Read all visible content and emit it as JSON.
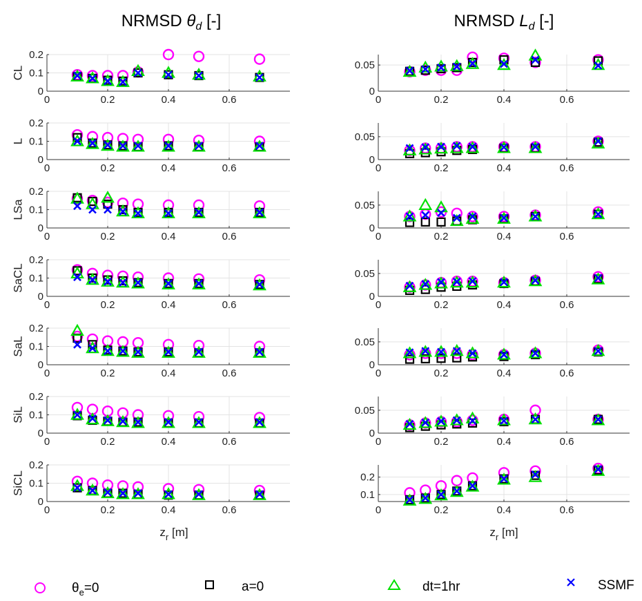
{
  "titles": {
    "left_prefix": "NRMSD ",
    "left_symbol": "θ",
    "left_sub": "d",
    "left_suffix": " [-]",
    "right_prefix": "NRMSD ",
    "right_symbol": "L",
    "right_sub": "d",
    "right_suffix": " [-]"
  },
  "xlabel": {
    "main": "z",
    "sub": "r",
    "unit": " [m]"
  },
  "legend": [
    {
      "name": "θ",
      "sub": "e",
      "suffix": "=0",
      "marker": "circle",
      "color": "#ff00ff"
    },
    {
      "name": "a=0",
      "sub": "",
      "suffix": "",
      "marker": "square",
      "color": "#000000"
    },
    {
      "name": "dt=1hr",
      "sub": "",
      "suffix": "",
      "marker": "triangle",
      "color": "#00e000"
    },
    {
      "name": "SSMF",
      "sub": "",
      "suffix": "",
      "marker": "x",
      "color": "#0000ff"
    }
  ],
  "chart_data": {
    "type": "scatter",
    "x": [
      0.1,
      0.15,
      0.2,
      0.25,
      0.3,
      0.4,
      0.5,
      0.7
    ],
    "xlim": [
      0,
      0.8
    ],
    "xticks": [
      0,
      0.2,
      0.4,
      0.6
    ],
    "xtick_labels": [
      "0",
      "0.2",
      "0.4",
      "0.6"
    ],
    "grid": true,
    "rows": [
      "CL",
      "L",
      "LSa",
      "SaCL",
      "SaL",
      "SiL",
      "SiCL"
    ],
    "left": {
      "ylim": [
        0,
        0.2
      ],
      "yticks": [
        0,
        0.1,
        0.2
      ],
      "ytick_labels": [
        "0",
        "0.1",
        "0.2"
      ],
      "panels": [
        {
          "soil": "CL",
          "series": [
            {
              "name": "θe=0",
              "values": [
                0.09,
                0.085,
                0.085,
                0.085,
                0.105,
                0.2,
                0.19,
                0.175
              ]
            },
            {
              "name": "a=0",
              "values": [
                0.08,
                0.07,
                0.06,
                0.055,
                0.1,
                0.09,
                0.085,
                0.075
              ]
            },
            {
              "name": "dt=1hr",
              "values": [
                0.08,
                0.07,
                0.055,
                0.05,
                0.11,
                0.1,
                0.09,
                0.08
              ]
            },
            {
              "name": "SSMF",
              "values": [
                0.085,
                0.07,
                0.055,
                0.05,
                0.1,
                0.09,
                0.085,
                0.075
              ]
            }
          ]
        },
        {
          "soil": "L",
          "series": [
            {
              "name": "θe=0",
              "values": [
                0.135,
                0.125,
                0.12,
                0.115,
                0.11,
                0.11,
                0.105,
                0.1
              ]
            },
            {
              "name": "a=0",
              "values": [
                0.12,
                0.09,
                0.08,
                0.075,
                0.07,
                0.075,
                0.07,
                0.07
              ]
            },
            {
              "name": "dt=1hr",
              "values": [
                0.1,
                0.085,
                0.075,
                0.07,
                0.07,
                0.07,
                0.07,
                0.07
              ]
            },
            {
              "name": "SSMF",
              "values": [
                0.1,
                0.09,
                0.08,
                0.075,
                0.075,
                0.075,
                0.075,
                0.075
              ]
            }
          ]
        },
        {
          "soil": "LSa",
          "series": [
            {
              "name": "θe=0",
              "values": [
                0.16,
                0.15,
                0.14,
                0.135,
                0.13,
                0.125,
                0.125,
                0.12
              ]
            },
            {
              "name": "a=0",
              "values": [
                0.165,
                0.145,
                0.13,
                0.1,
                0.085,
                0.085,
                0.085,
                0.085
              ]
            },
            {
              "name": "dt=1hr",
              "values": [
                0.16,
                0.13,
                0.165,
                0.09,
                0.08,
                0.08,
                0.08,
                0.08
              ]
            },
            {
              "name": "SSMF",
              "values": [
                0.12,
                0.1,
                0.1,
                0.09,
                0.08,
                0.08,
                0.085,
                0.085
              ]
            }
          ]
        },
        {
          "soil": "SaCL",
          "series": [
            {
              "name": "θe=0",
              "values": [
                0.145,
                0.125,
                0.115,
                0.11,
                0.105,
                0.1,
                0.095,
                0.09
              ]
            },
            {
              "name": "a=0",
              "values": [
                0.14,
                0.1,
                0.09,
                0.085,
                0.075,
                0.07,
                0.07,
                0.065
              ]
            },
            {
              "name": "dt=1hr",
              "values": [
                0.125,
                0.09,
                0.08,
                0.075,
                0.07,
                0.065,
                0.065,
                0.06
              ]
            },
            {
              "name": "SSMF",
              "values": [
                0.105,
                0.09,
                0.08,
                0.075,
                0.075,
                0.07,
                0.07,
                0.065
              ]
            }
          ]
        },
        {
          "soil": "SaL",
          "series": [
            {
              "name": "θe=0",
              "values": [
                0.155,
                0.14,
                0.13,
                0.125,
                0.12,
                0.11,
                0.105,
                0.1
              ]
            },
            {
              "name": "a=0",
              "values": [
                0.145,
                0.11,
                0.08,
                0.075,
                0.07,
                0.07,
                0.065,
                0.065
              ]
            },
            {
              "name": "dt=1hr",
              "values": [
                0.185,
                0.09,
                0.075,
                0.07,
                0.065,
                0.065,
                0.065,
                0.065
              ]
            },
            {
              "name": "SSMF",
              "values": [
                0.11,
                0.09,
                0.075,
                0.075,
                0.07,
                0.07,
                0.07,
                0.07
              ]
            }
          ]
        },
        {
          "soil": "SiL",
          "series": [
            {
              "name": "θe=0",
              "values": [
                0.14,
                0.13,
                0.12,
                0.11,
                0.1,
                0.095,
                0.09,
                0.085
              ]
            },
            {
              "name": "a=0",
              "values": [
                0.095,
                0.07,
                0.065,
                0.06,
                0.06,
                0.055,
                0.055,
                0.055
              ]
            },
            {
              "name": "dt=1hr",
              "values": [
                0.1,
                0.075,
                0.065,
                0.06,
                0.055,
                0.055,
                0.055,
                0.055
              ]
            },
            {
              "name": "SSMF",
              "values": [
                0.1,
                0.08,
                0.07,
                0.065,
                0.06,
                0.06,
                0.06,
                0.06
              ]
            }
          ]
        },
        {
          "soil": "SiCL",
          "series": [
            {
              "name": "θe=0",
              "values": [
                0.11,
                0.1,
                0.09,
                0.085,
                0.08,
                0.07,
                0.065,
                0.06
              ]
            },
            {
              "name": "a=0",
              "values": [
                0.075,
                0.06,
                0.045,
                0.045,
                0.04,
                0.035,
                0.035,
                0.035
              ]
            },
            {
              "name": "dt=1hr",
              "values": [
                0.085,
                0.06,
                0.045,
                0.04,
                0.04,
                0.04,
                0.035,
                0.035
              ]
            },
            {
              "name": "SSMF",
              "values": [
                0.075,
                0.06,
                0.05,
                0.045,
                0.045,
                0.04,
                0.04,
                0.04
              ]
            }
          ]
        }
      ]
    },
    "right": {
      "panels": [
        {
          "soil": "CL",
          "ylim": [
            0,
            0.07
          ],
          "yticks": [
            0,
            0.05
          ],
          "ytick_labels": [
            "0",
            "0.05"
          ],
          "series": [
            {
              "name": "θe=0",
              "values": [
                0.037,
                0.04,
                0.04,
                0.04,
                0.065,
                0.063,
                0.055,
                0.06
              ]
            },
            {
              "name": "a=0",
              "values": [
                0.038,
                0.04,
                0.043,
                0.045,
                0.055,
                0.06,
                0.055,
                0.058
              ]
            },
            {
              "name": "dt=1hr",
              "values": [
                0.037,
                0.045,
                0.047,
                0.048,
                0.052,
                0.05,
                0.068,
                0.05
              ]
            },
            {
              "name": "SSMF",
              "values": [
                0.039,
                0.042,
                0.045,
                0.047,
                0.053,
                0.052,
                0.06,
                0.049
              ]
            }
          ]
        },
        {
          "soil": "L",
          "ylim": [
            0,
            0.08
          ],
          "yticks": [
            0,
            0.05
          ],
          "ytick_labels": [
            "0",
            "0.05"
          ],
          "series": [
            {
              "name": "θe=0",
              "values": [
                0.02,
                0.025,
                0.025,
                0.028,
                0.028,
                0.028,
                0.028,
                0.04
              ]
            },
            {
              "name": "a=0",
              "values": [
                0.013,
                0.015,
                0.017,
                0.02,
                0.022,
                0.025,
                0.025,
                0.038
              ]
            },
            {
              "name": "dt=1hr",
              "values": [
                0.02,
                0.022,
                0.024,
                0.025,
                0.025,
                0.025,
                0.025,
                0.035
              ]
            },
            {
              "name": "SSMF",
              "values": [
                0.025,
                0.027,
                0.028,
                0.03,
                0.028,
                0.027,
                0.028,
                0.04
              ]
            }
          ]
        },
        {
          "soil": "LSa",
          "ylim": [
            0,
            0.08
          ],
          "yticks": [
            0,
            0.05
          ],
          "ytick_labels": [
            "0",
            "0.05"
          ],
          "series": [
            {
              "name": "θe=0",
              "values": [
                0.025,
                0.03,
                0.035,
                0.032,
                0.025,
                0.025,
                0.028,
                0.035
              ]
            },
            {
              "name": "a=0",
              "values": [
                0.012,
                0.013,
                0.013,
                0.015,
                0.018,
                0.02,
                0.025,
                0.03
              ]
            },
            {
              "name": "dt=1hr",
              "values": [
                0.025,
                0.05,
                0.045,
                0.015,
                0.02,
                0.02,
                0.025,
                0.03
              ]
            },
            {
              "name": "SSMF",
              "values": [
                0.025,
                0.028,
                0.033,
                0.022,
                0.025,
                0.022,
                0.025,
                0.03
              ]
            }
          ]
        },
        {
          "soil": "SaCL",
          "ylim": [
            0,
            0.08
          ],
          "yticks": [
            0,
            0.05
          ],
          "ytick_labels": [
            "0",
            "0.05"
          ],
          "series": [
            {
              "name": "θe=0",
              "values": [
                0.02,
                0.025,
                0.03,
                0.033,
                0.033,
                0.03,
                0.035,
                0.043
              ]
            },
            {
              "name": "a=0",
              "values": [
                0.013,
                0.015,
                0.02,
                0.022,
                0.025,
                0.028,
                0.033,
                0.038
              ]
            },
            {
              "name": "dt=1hr",
              "values": [
                0.02,
                0.025,
                0.028,
                0.03,
                0.03,
                0.03,
                0.033,
                0.037
              ]
            },
            {
              "name": "SSMF",
              "values": [
                0.023,
                0.027,
                0.031,
                0.032,
                0.033,
                0.031,
                0.035,
                0.04
              ]
            }
          ]
        },
        {
          "soil": "SaL",
          "ylim": [
            0,
            0.08
          ],
          "yticks": [
            0,
            0.05
          ],
          "ytick_labels": [
            "0",
            "0.05"
          ],
          "series": [
            {
              "name": "θe=0",
              "values": [
                0.022,
                0.025,
                0.025,
                0.025,
                0.022,
                0.022,
                0.025,
                0.032
              ]
            },
            {
              "name": "a=0",
              "values": [
                0.012,
                0.013,
                0.014,
                0.015,
                0.017,
                0.018,
                0.022,
                0.028
              ]
            },
            {
              "name": "dt=1hr",
              "values": [
                0.025,
                0.028,
                0.028,
                0.03,
                0.025,
                0.022,
                0.025,
                0.03
              ]
            },
            {
              "name": "SSMF",
              "values": [
                0.027,
                0.03,
                0.028,
                0.03,
                0.025,
                0.022,
                0.025,
                0.03
              ]
            }
          ]
        },
        {
          "soil": "SiL",
          "ylim": [
            0,
            0.08
          ],
          "yticks": [
            0,
            0.05
          ],
          "ytick_labels": [
            "0",
            "0.05"
          ],
          "series": [
            {
              "name": "θe=0",
              "values": [
                0.018,
                0.022,
                0.025,
                0.025,
                0.028,
                0.03,
                0.05,
                0.03
              ]
            },
            {
              "name": "a=0",
              "values": [
                0.012,
                0.015,
                0.018,
                0.02,
                0.022,
                0.025,
                0.03,
                0.03
              ]
            },
            {
              "name": "dt=1hr",
              "values": [
                0.018,
                0.022,
                0.025,
                0.028,
                0.032,
                0.028,
                0.03,
                0.028
              ]
            },
            {
              "name": "SSMF",
              "values": [
                0.02,
                0.023,
                0.026,
                0.028,
                0.027,
                0.027,
                0.03,
                0.03
              ]
            }
          ]
        },
        {
          "soil": "SiCL",
          "ylim": [
            0.06,
            0.27
          ],
          "yticks": [
            0.1,
            0.2
          ],
          "ytick_labels": [
            "0.1",
            "0.2"
          ],
          "series": [
            {
              "name": "θe=0",
              "values": [
                0.11,
                0.125,
                0.15,
                0.18,
                0.195,
                0.225,
                0.235,
                0.25
              ]
            },
            {
              "name": "a=0",
              "values": [
                0.07,
                0.08,
                0.1,
                0.12,
                0.15,
                0.19,
                0.21,
                0.24
              ]
            },
            {
              "name": "dt=1hr",
              "values": [
                0.065,
                0.075,
                0.095,
                0.115,
                0.145,
                0.185,
                0.2,
                0.235
              ]
            },
            {
              "name": "SSMF",
              "values": [
                0.07,
                0.08,
                0.1,
                0.12,
                0.15,
                0.19,
                0.215,
                0.245
              ]
            }
          ]
        }
      ]
    }
  }
}
